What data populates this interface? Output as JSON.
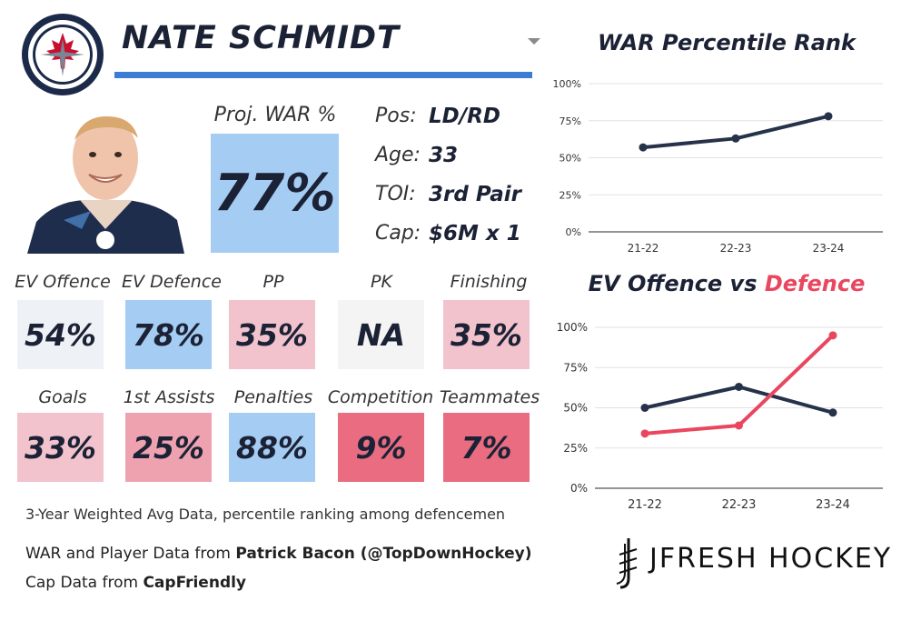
{
  "player": {
    "name": "NATE SCHMIDT",
    "proj_war_label": "Proj. WAR %",
    "proj_war_value": "77%"
  },
  "colors": {
    "underline": "#3b7cd4",
    "offence_line": "#26324a",
    "defence_line": "#e8475f",
    "defence_title": "#e8475f"
  },
  "info": [
    {
      "label": "Pos:",
      "value": "LD/RD"
    },
    {
      "label": "Age:",
      "value": "33"
    },
    {
      "label": "TOI:",
      "value": "3rd Pair"
    },
    {
      "label": "Cap:",
      "value": "$6M x 1"
    }
  ],
  "metrics_row1": [
    {
      "label": "EV Offence",
      "value": "54%",
      "color": "#eef1f6"
    },
    {
      "label": "EV Defence",
      "value": "78%",
      "color": "#a5cdf3"
    },
    {
      "label": "PP",
      "value": "35%",
      "color": "#f2c3cd"
    },
    {
      "label": "PK",
      "value": "NA",
      "color": "#f4f4f4"
    },
    {
      "label": "Finishing",
      "value": "35%",
      "color": "#f2c3cd"
    }
  ],
  "metrics_row2": [
    {
      "label": "Goals",
      "value": "33%",
      "color": "#f2c3cd"
    },
    {
      "label": "1st Assists",
      "value": "25%",
      "color": "#eea2b0"
    },
    {
      "label": "Penalties",
      "value": "88%",
      "color": "#a5cdf3"
    },
    {
      "label": "Competition",
      "value": "9%",
      "color": "#e96c81"
    },
    {
      "label": "Teammates",
      "value": "7%",
      "color": "#e96c81"
    }
  ],
  "footer": {
    "note": "3-Year Weighted Avg Data, percentile ranking among defencemen",
    "war_source_prefix": "WAR and Player Data from ",
    "war_source_name": "Patrick Bacon (@TopDownHockey)",
    "cap_source_prefix": "Cap Data from ",
    "cap_source_name": "CapFriendly",
    "brand": "JFRESH HOCKEY"
  },
  "chart_data": [
    {
      "type": "line",
      "title": "WAR Percentile Rank",
      "categories": [
        "21-22",
        "22-23",
        "23-24"
      ],
      "series": [
        {
          "values": [
            57,
            63,
            78
          ],
          "color": "#26324a"
        }
      ],
      "ylim": [
        0,
        100
      ],
      "yticks": [
        "0%",
        "25%",
        "50%",
        "75%",
        "100%"
      ],
      "grid": true
    },
    {
      "type": "line",
      "title_part1": "EV Offence",
      "title_part2": " vs ",
      "title_part3": "Defence",
      "categories": [
        "21-22",
        "22-23",
        "23-24"
      ],
      "series": [
        {
          "values": [
            50,
            63,
            47
          ],
          "color": "#26324a"
        },
        {
          "values": [
            34,
            39,
            95
          ],
          "color": "#e8475f"
        }
      ],
      "ylim": [
        0,
        100
      ],
      "yticks": [
        "0%",
        "25%",
        "50%",
        "75%",
        "100%"
      ],
      "grid": true
    }
  ]
}
